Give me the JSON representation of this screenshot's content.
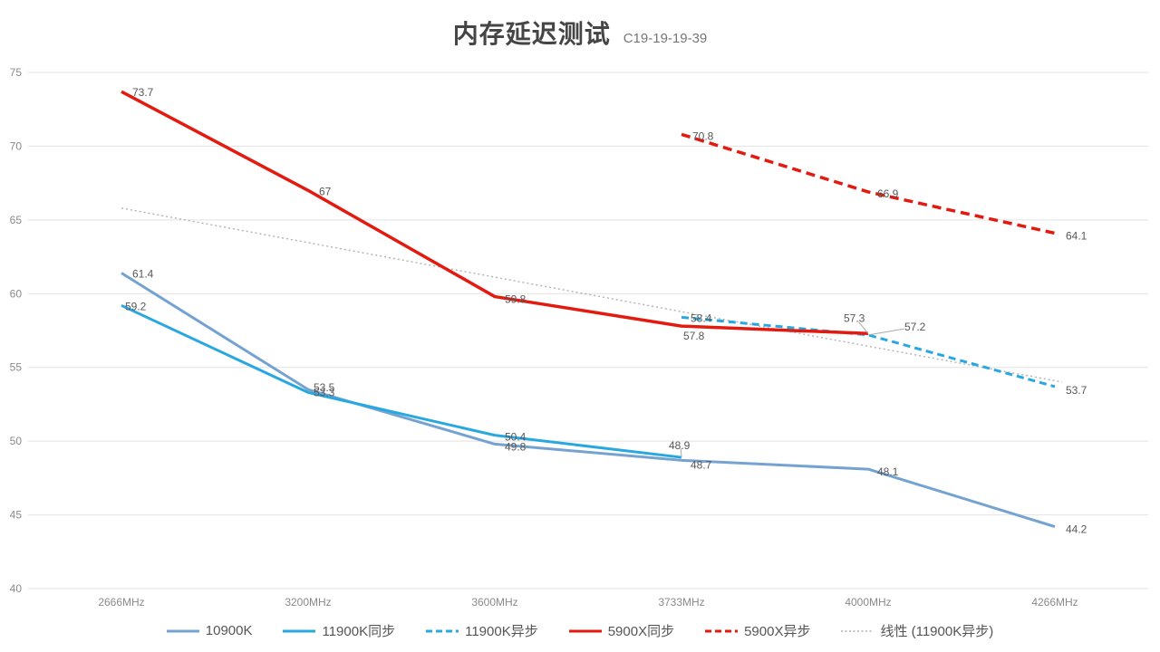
{
  "title": "内存延迟测试",
  "subtitle": "C19-19-19-39",
  "colors": {
    "blue_gray": "#75a3d1",
    "cyan": "#29a8e0",
    "red": "#e31a0f",
    "trend_gray": "#b3b0b0",
    "gridline": "#e2e2e2",
    "axis_text": "#8a8a8a",
    "label_text": "#575757",
    "leader": "#a9a9a9"
  },
  "chart_data": {
    "type": "line",
    "title": "内存延迟测试",
    "subtitle": "C19-19-19-39",
    "categories": [
      "2666MHz",
      "3200MHz",
      "3600MHz",
      "3733MHz",
      "4000MHz",
      "4266MHz"
    ],
    "ylabel": "",
    "xlabel": "",
    "ylim": [
      40,
      75
    ],
    "ytick_step": 5,
    "grid": "horizontal",
    "legend_position": "bottom",
    "series": [
      {
        "name": "10900K",
        "color": "blue_gray",
        "dash": "solid",
        "width": 3,
        "start": 0,
        "values": [
          61.4,
          53.5,
          49.8,
          48.7,
          48.1,
          44.2
        ],
        "label_offsets": [
          [
            12,
            5
          ],
          [
            6,
            2
          ],
          [
            11,
            7
          ],
          [
            10,
            9
          ],
          [
            10,
            7
          ],
          [
            12,
            7
          ]
        ],
        "leaders": [
          false,
          false,
          false,
          false,
          false,
          false
        ]
      },
      {
        "name": "11900K同步",
        "color": "cyan",
        "dash": "solid",
        "width": 3,
        "start": 0,
        "values": [
          59.2,
          53.3,
          50.4,
          48.9
        ],
        "label_offsets": [
          [
            4,
            5
          ],
          [
            6,
            4
          ],
          [
            11,
            6
          ],
          [
            -14,
            -9
          ]
        ],
        "leaders": [
          false,
          false,
          false,
          true
        ]
      },
      {
        "name": "11900K异步",
        "color": "cyan",
        "dash": "dashed",
        "width": 3,
        "start": 3,
        "values": [
          58.4,
          57.2,
          53.7
        ],
        "label_offsets": [
          [
            10,
            5
          ],
          [
            40,
            -5
          ],
          [
            12,
            8
          ]
        ],
        "leaders": [
          false,
          true,
          false
        ]
      },
      {
        "name": "5900X同步",
        "color": "red",
        "dash": "solid",
        "width": 3.5,
        "start": 0,
        "values": [
          73.7,
          67,
          59.8,
          57.8,
          57.3
        ],
        "label_offsets": [
          [
            12,
            5
          ],
          [
            12,
            5
          ],
          [
            11,
            7
          ],
          [
            2,
            15
          ],
          [
            -27,
            -13
          ]
        ],
        "leaders": [
          false,
          false,
          false,
          false,
          true
        ]
      },
      {
        "name": "5900X异步",
        "color": "red",
        "dash": "dashed",
        "width": 3.5,
        "start": 3,
        "values": [
          70.8,
          66.9,
          64.1
        ],
        "label_offsets": [
          [
            12,
            6
          ],
          [
            10,
            6
          ],
          [
            12,
            7
          ]
        ],
        "leaders": [
          false,
          false,
          false
        ]
      },
      {
        "name": "线性 (11900K异步)",
        "color": "trend_gray",
        "dash": "dotted",
        "width": 1.4,
        "trendline": true,
        "trend": {
          "start_value": 65.8,
          "end_value": 54.1
        }
      }
    ]
  }
}
